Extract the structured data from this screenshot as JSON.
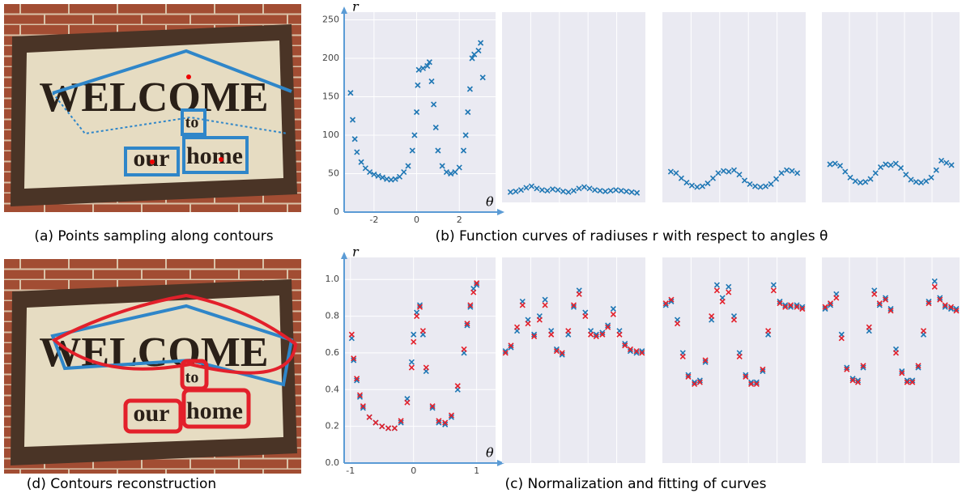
{
  "photos": [
    {
      "texts": [
        "WELCOME",
        "to",
        "our",
        "home"
      ]
    },
    {
      "texts": [
        "WELCOME",
        "to",
        "our",
        "home"
      ]
    }
  ],
  "captions": [
    "(a) Points sampling along contours",
    "(b) Function curves of radiuses r with respect to angles θ",
    "(c) Normalization and fitting of curves",
    "(d) Contours reconstruction"
  ],
  "chart_data": [
    {
      "type": "scatter",
      "x_label": "θ",
      "y_label": "r",
      "grid": true,
      "xlim": [
        -3.4,
        3.7
      ],
      "ylim": [
        0,
        260
      ],
      "xticks": [
        -2,
        0,
        2
      ],
      "yticks": [
        0,
        50,
        100,
        150,
        200,
        250
      ],
      "x": [
        -3.1,
        -3.0,
        -2.9,
        -2.8,
        -2.6,
        -2.4,
        -2.2,
        -2.0,
        -1.8,
        -1.6,
        -1.4,
        -1.2,
        -1.0,
        -0.8,
        -0.6,
        -0.4,
        -0.2,
        -0.1,
        0.0,
        0.05,
        0.1,
        0.3,
        0.5,
        0.6,
        0.7,
        0.8,
        0.9,
        1.0,
        1.2,
        1.4,
        1.6,
        1.8,
        2.0,
        2.2,
        2.3,
        2.4,
        2.5,
        2.6,
        2.7,
        2.9,
        3.0,
        3.1
      ],
      "series": [
        {
          "color": "#1f77b4",
          "values": [
            155,
            120,
            95,
            78,
            65,
            57,
            52,
            49,
            47,
            45,
            43,
            42,
            43,
            46,
            52,
            60,
            80,
            100,
            130,
            165,
            185,
            187,
            190,
            195,
            170,
            140,
            110,
            80,
            60,
            52,
            50,
            52,
            58,
            80,
            100,
            130,
            160,
            200,
            205,
            210,
            220,
            175
          ]
        }
      ]
    },
    {
      "type": "scatter",
      "grid": true,
      "xlim": [
        -3.4,
        3.4
      ],
      "ylim": [
        0,
        260
      ],
      "x": [
        -3.0,
        -2.75,
        -2.5,
        -2.25,
        -2.0,
        -1.75,
        -1.5,
        -1.25,
        -1.0,
        -0.75,
        -0.5,
        -0.25,
        0,
        0.25,
        0.5,
        0.75,
        1.0,
        1.25,
        1.5,
        1.75,
        2.0,
        2.25,
        2.5,
        2.75,
        3.0
      ],
      "series": [
        {
          "color": "#1f77b4",
          "values": [
            14,
            15,
            17,
            20,
            22,
            19,
            17,
            16,
            18,
            17,
            15,
            14,
            16,
            19,
            21,
            19,
            17,
            16,
            15,
            16,
            17,
            16,
            15,
            14,
            13
          ]
        }
      ]
    },
    {
      "type": "scatter",
      "grid": true,
      "xlim": [
        -3.4,
        3.4
      ],
      "ylim": [
        0,
        260
      ],
      "x": [
        -3.0,
        -2.75,
        -2.5,
        -2.25,
        -2.0,
        -1.75,
        -1.5,
        -1.25,
        -1.0,
        -0.75,
        -0.5,
        -0.25,
        0,
        0.25,
        0.5,
        0.75,
        1.0,
        1.25,
        1.5,
        1.75,
        2.0,
        2.25,
        2.5,
        2.75,
        3.0
      ],
      "series": [
        {
          "color": "#1f77b4",
          "values": [
            42,
            40,
            33,
            27,
            23,
            21,
            22,
            26,
            33,
            40,
            43,
            42,
            44,
            38,
            30,
            25,
            22,
            21,
            22,
            25,
            32,
            40,
            44,
            43,
            40
          ]
        }
      ]
    },
    {
      "type": "scatter",
      "grid": true,
      "xlim": [
        -3.4,
        3.4
      ],
      "ylim": [
        0,
        260
      ],
      "x": [
        -3.0,
        -2.75,
        -2.5,
        -2.25,
        -2.0,
        -1.75,
        -1.5,
        -1.25,
        -1.0,
        -0.75,
        -0.5,
        -0.25,
        0,
        0.25,
        0.5,
        0.75,
        1.0,
        1.25,
        1.5,
        1.75,
        2.0,
        2.25,
        2.5,
        2.75,
        3.0
      ],
      "series": [
        {
          "color": "#1f77b4",
          "values": [
            52,
            53,
            50,
            42,
            34,
            29,
            27,
            28,
            32,
            40,
            48,
            52,
            51,
            53,
            47,
            38,
            31,
            28,
            27,
            29,
            34,
            44,
            57,
            54,
            51
          ]
        }
      ]
    },
    {
      "type": "scatter",
      "x_label": "θ",
      "y_label": "r",
      "grid": true,
      "xlim": [
        -1.1,
        1.3
      ],
      "ylim": [
        0,
        1.12
      ],
      "xticks": [
        -1,
        0,
        1
      ],
      "yticks": [
        {
          "value": 0,
          "label": "0.0"
        },
        {
          "value": 0.2,
          "label": "0.2"
        },
        {
          "value": 0.4,
          "label": "0.4"
        },
        {
          "value": 0.6,
          "label": "0.6"
        },
        {
          "value": 0.8,
          "label": "0.8"
        },
        {
          "value": 1,
          "label": "1.0"
        }
      ],
      "x": [
        -0.98,
        -0.95,
        -0.9,
        -0.85,
        -0.8,
        -0.7,
        -0.6,
        -0.5,
        -0.4,
        -0.3,
        -0.2,
        -0.1,
        -0.03,
        0.0,
        0.05,
        0.1,
        0.15,
        0.2,
        0.3,
        0.4,
        0.5,
        0.6,
        0.7,
        0.8,
        0.85,
        0.9,
        0.95,
        1.0
      ],
      "series": [
        {
          "color": "#1f77b4",
          "values": [
            0.68,
            0.56,
            0.45,
            0.36,
            0.3,
            0.25,
            0.22,
            0.2,
            0.19,
            0.19,
            0.22,
            0.35,
            0.55,
            0.7,
            0.82,
            0.86,
            0.7,
            0.5,
            0.3,
            0.22,
            0.21,
            0.25,
            0.4,
            0.6,
            0.75,
            0.85,
            0.95,
            0.97
          ]
        },
        {
          "color": "#e3202b",
          "values": [
            0.7,
            0.57,
            0.46,
            0.37,
            0.31,
            0.25,
            0.22,
            0.2,
            0.19,
            0.19,
            0.23,
            0.33,
            0.52,
            0.66,
            0.8,
            0.85,
            0.72,
            0.52,
            0.31,
            0.23,
            0.22,
            0.26,
            0.42,
            0.62,
            0.76,
            0.86,
            0.93,
            0.98
          ]
        }
      ]
    },
    {
      "type": "scatter",
      "grid": true,
      "xlim": [
        -1.05,
        1.05
      ],
      "ylim": [
        0,
        1.12
      ],
      "x": [
        -1.0,
        -0.92,
        -0.83,
        -0.75,
        -0.67,
        -0.58,
        -0.5,
        -0.42,
        -0.33,
        -0.25,
        -0.17,
        -0.08,
        0,
        0.08,
        0.17,
        0.25,
        0.33,
        0.42,
        0.5,
        0.58,
        0.67,
        0.75,
        0.83,
        0.92,
        1.0
      ],
      "series": [
        {
          "color": "#1f77b4",
          "values": [
            0.61,
            0.63,
            0.72,
            0.88,
            0.78,
            0.7,
            0.8,
            0.89,
            0.72,
            0.62,
            0.59,
            0.7,
            0.85,
            0.94,
            0.82,
            0.72,
            0.7,
            0.71,
            0.75,
            0.84,
            0.72,
            0.65,
            0.61,
            0.6,
            0.61
          ]
        },
        {
          "color": "#e3202b",
          "values": [
            0.6,
            0.64,
            0.74,
            0.86,
            0.76,
            0.69,
            0.78,
            0.86,
            0.7,
            0.61,
            0.6,
            0.72,
            0.86,
            0.92,
            0.8,
            0.7,
            0.69,
            0.7,
            0.74,
            0.81,
            0.7,
            0.64,
            0.62,
            0.61,
            0.6
          ]
        }
      ]
    },
    {
      "type": "scatter",
      "grid": true,
      "xlim": [
        -1.05,
        1.05
      ],
      "ylim": [
        0,
        1.12
      ],
      "x": [
        -1.0,
        -0.92,
        -0.83,
        -0.75,
        -0.67,
        -0.58,
        -0.5,
        -0.42,
        -0.33,
        -0.25,
        -0.17,
        -0.08,
        0,
        0.08,
        0.17,
        0.25,
        0.33,
        0.42,
        0.5,
        0.58,
        0.67,
        0.75,
        0.83,
        0.92,
        1.0
      ],
      "series": [
        {
          "color": "#1f77b4",
          "values": [
            0.86,
            0.88,
            0.78,
            0.6,
            0.48,
            0.44,
            0.45,
            0.55,
            0.78,
            0.97,
            0.9,
            0.96,
            0.8,
            0.6,
            0.48,
            0.44,
            0.44,
            0.5,
            0.7,
            0.97,
            0.88,
            0.86,
            0.85,
            0.86,
            0.85
          ]
        },
        {
          "color": "#e3202b",
          "values": [
            0.87,
            0.89,
            0.76,
            0.58,
            0.47,
            0.43,
            0.44,
            0.56,
            0.8,
            0.94,
            0.88,
            0.93,
            0.78,
            0.58,
            0.47,
            0.43,
            0.43,
            0.51,
            0.72,
            0.94,
            0.87,
            0.85,
            0.86,
            0.85,
            0.84
          ]
        }
      ]
    },
    {
      "type": "scatter",
      "grid": true,
      "xlim": [
        -1.05,
        1.05
      ],
      "ylim": [
        0,
        1.12
      ],
      "x": [
        -1.0,
        -0.92,
        -0.83,
        -0.75,
        -0.67,
        -0.58,
        -0.5,
        -0.42,
        -0.33,
        -0.25,
        -0.17,
        -0.08,
        0,
        0.08,
        0.17,
        0.25,
        0.33,
        0.42,
        0.5,
        0.58,
        0.67,
        0.75,
        0.83,
        0.92,
        1.0
      ],
      "series": [
        {
          "color": "#1f77b4",
          "values": [
            0.84,
            0.86,
            0.92,
            0.7,
            0.52,
            0.46,
            0.45,
            0.52,
            0.72,
            0.94,
            0.86,
            0.9,
            0.84,
            0.62,
            0.5,
            0.45,
            0.45,
            0.52,
            0.7,
            0.88,
            0.99,
            0.9,
            0.85,
            0.84,
            0.84
          ]
        },
        {
          "color": "#e3202b",
          "values": [
            0.85,
            0.87,
            0.9,
            0.68,
            0.51,
            0.45,
            0.44,
            0.53,
            0.74,
            0.92,
            0.87,
            0.89,
            0.83,
            0.6,
            0.49,
            0.44,
            0.44,
            0.53,
            0.72,
            0.87,
            0.96,
            0.89,
            0.86,
            0.85,
            0.83
          ]
        }
      ]
    }
  ]
}
